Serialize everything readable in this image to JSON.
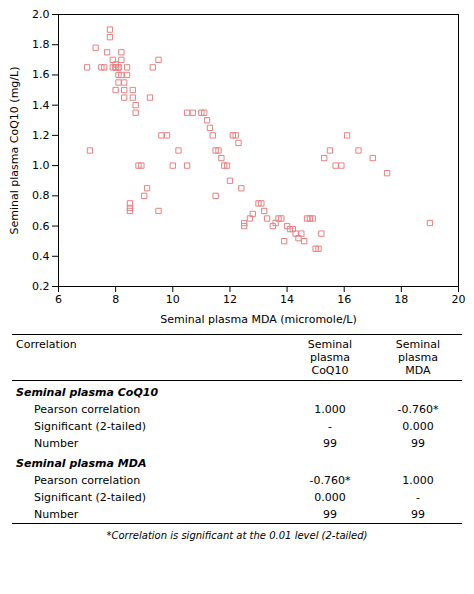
{
  "chart_data": [
    {
      "type": "scatter",
      "x": [
        7.1,
        7.3,
        7.5,
        7.6,
        7.7,
        7.8,
        7.8,
        7.9,
        7.9,
        8.0,
        8.0,
        8.0,
        8.1,
        8.1,
        8.1,
        8.1,
        8.2,
        8.2,
        8.2,
        8.3,
        8.3,
        8.3,
        8.4,
        8.4,
        8.5,
        8.5,
        8.5,
        8.6,
        8.6,
        8.7,
        8.7,
        8.8,
        8.9,
        9.0,
        9.1,
        9.2,
        9.3,
        9.5,
        9.6,
        9.8,
        10.0,
        10.2,
        10.5,
        10.7,
        11.0,
        11.1,
        11.2,
        11.3,
        11.4,
        11.5,
        11.5,
        11.6,
        11.7,
        11.8,
        11.9,
        12.0,
        12.1,
        12.2,
        12.3,
        12.4,
        12.5,
        12.5,
        12.7,
        12.8,
        13.0,
        13.1,
        13.2,
        13.3,
        13.5,
        13.6,
        13.7,
        13.8,
        13.9,
        14.0,
        14.1,
        14.2,
        14.3,
        14.4,
        14.5,
        14.6,
        14.7,
        14.8,
        14.9,
        15.0,
        15.1,
        15.2,
        15.3,
        15.5,
        15.7,
        15.9,
        16.1,
        16.5,
        17.0,
        17.5,
        19.0,
        7.0,
        8.0,
        9.5,
        10.5
      ],
      "values": [
        1.1,
        1.78,
        1.65,
        1.65,
        1.75,
        1.9,
        1.85,
        1.7,
        1.65,
        1.65,
        1.65,
        1.67,
        1.65,
        1.65,
        1.6,
        1.55,
        1.75,
        1.7,
        1.6,
        1.55,
        1.5,
        1.45,
        1.65,
        1.6,
        0.7,
        0.72,
        0.75,
        1.45,
        1.5,
        1.35,
        1.4,
        1.0,
        1.0,
        0.8,
        0.85,
        1.45,
        1.65,
        1.7,
        1.2,
        1.2,
        1.0,
        1.1,
        1.35,
        1.35,
        1.35,
        1.35,
        1.3,
        1.25,
        1.2,
        1.1,
        0.8,
        1.1,
        1.05,
        1.0,
        1.0,
        0.9,
        1.2,
        1.2,
        1.15,
        0.85,
        0.6,
        0.62,
        0.65,
        0.68,
        0.75,
        0.75,
        0.7,
        0.65,
        0.6,
        0.62,
        0.65,
        0.65,
        0.5,
        0.6,
        0.58,
        0.58,
        0.55,
        0.52,
        0.55,
        0.5,
        0.65,
        0.65,
        0.65,
        0.45,
        0.45,
        0.55,
        1.05,
        1.1,
        1.0,
        1.0,
        1.2,
        1.1,
        1.05,
        0.95,
        0.62,
        1.65,
        1.5,
        0.7,
        1.0
      ],
      "color": "#e88080",
      "marker": "square",
      "xlabel": "Seminal plasma MDA (micromole/L)",
      "ylabel": "Seminal plasma CoQ10 (mg/L)",
      "xlim": [
        6,
        20
      ],
      "ylim": [
        0.2,
        2.0
      ],
      "xticks": [
        6,
        8,
        10,
        12,
        14,
        16,
        18,
        20
      ],
      "yticks": [
        0.2,
        0.4,
        0.6,
        0.8,
        {
          "value": 1.0,
          "label": "1.0"
        },
        1.2,
        1.4,
        1.6,
        1.8,
        {
          "value": 2.0,
          "label": "2.0"
        }
      ],
      "grid": false
    },
    {
      "type": "table",
      "header": [
        "Correlation",
        "Seminal\nplasma\nCoQ10",
        "Seminal\nplasma\nMDA"
      ],
      "sections": [
        {
          "title": "Seminal plasma CoQ10",
          "rows": [
            [
              "Pearson correlation",
              "1.000",
              "-0.760*"
            ],
            [
              "Significant (2-tailed)",
              "-",
              "0.000"
            ],
            [
              "Number",
              "99",
              "99"
            ]
          ]
        },
        {
          "title": "Seminal plasma MDA",
          "rows": [
            [
              "Pearson correlation",
              "-0.760*",
              "1.000"
            ],
            [
              "Significant (2-tailed)",
              "0.000",
              "-"
            ],
            [
              "Number",
              "99",
              "99"
            ]
          ]
        }
      ],
      "footnote": "*Correlation is significant at the 0.01 level (2-tailed)"
    }
  ]
}
